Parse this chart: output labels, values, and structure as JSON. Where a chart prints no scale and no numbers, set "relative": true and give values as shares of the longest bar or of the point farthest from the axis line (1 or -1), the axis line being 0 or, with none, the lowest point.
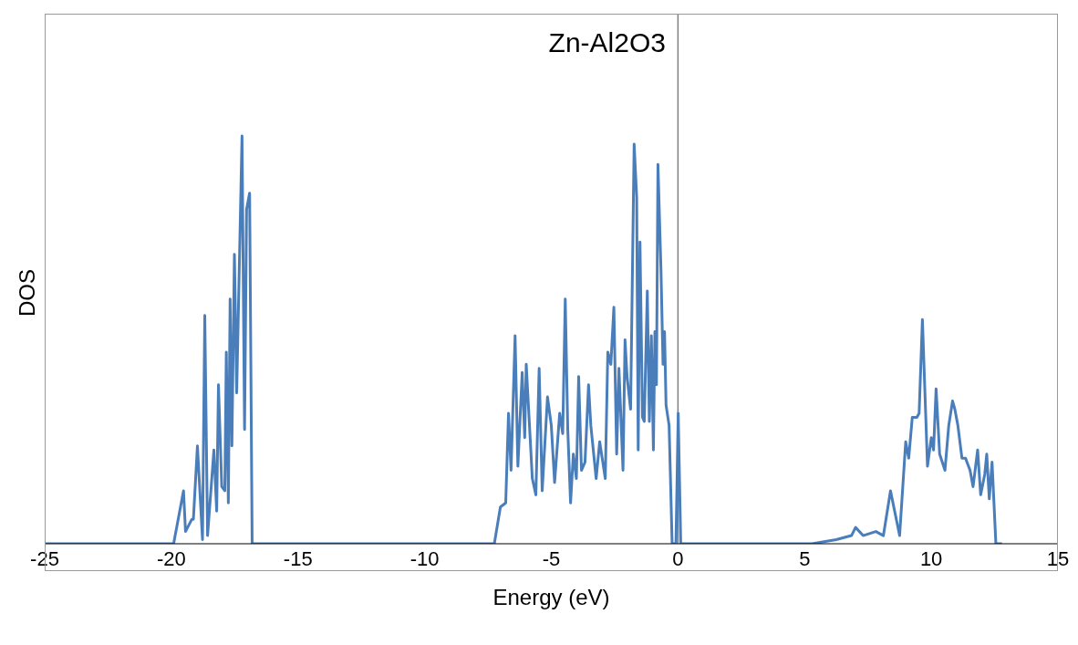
{
  "chart_data": {
    "type": "line",
    "title": "Zn-Al2O3",
    "xlabel": "Energy (eV)",
    "ylabel": "DOS",
    "relative": true,
    "xlim": [
      -25,
      15
    ],
    "xticks": [
      -25,
      -20,
      -15,
      -10,
      -5,
      0,
      5,
      10,
      15
    ],
    "grid": false,
    "legend": false,
    "marker": "none",
    "line_style": "solid",
    "ref_lines": [
      {
        "axis": "x",
        "value": 0,
        "color": "#808080"
      }
    ],
    "series": [
      {
        "color": "#4a7ebb",
        "x": [
          -25,
          -20.0,
          -19.91,
          -19.52,
          -19.44,
          -19.19,
          -19.13,
          -18.97,
          -18.77,
          -18.68,
          -18.57,
          -18.32,
          -18.21,
          -18.14,
          -18.01,
          -17.89,
          -17.83,
          -17.75,
          -17.68,
          -17.61,
          -17.51,
          -17.42,
          -17.21,
          -17.11,
          -17.03,
          -16.91,
          -16.81,
          -7.25,
          -7.01,
          -6.8,
          -6.69,
          -6.59,
          -6.43,
          -6.32,
          -6.15,
          -6.05,
          -5.99,
          -5.75,
          -5.61,
          -5.48,
          -5.36,
          -5.15,
          -5.0,
          -4.87,
          -4.67,
          -4.55,
          -4.45,
          -4.35,
          -4.24,
          -4.13,
          -4.01,
          -3.92,
          -3.81,
          -3.67,
          -3.53,
          -3.44,
          -3.23,
          -3.09,
          -2.87,
          -2.77,
          -2.65,
          -2.53,
          -2.42,
          -2.33,
          -2.17,
          -2.09,
          -2.01,
          -1.87,
          -1.73,
          -1.63,
          -1.57,
          -1.5,
          -1.4,
          -1.33,
          -1.21,
          -1.13,
          -1.05,
          -0.97,
          -0.91,
          -0.85,
          -0.79,
          -0.67,
          -0.59,
          -0.53,
          -0.47,
          -0.35,
          -0.23,
          -0.08,
          0.01,
          0.11,
          5.29,
          6.25,
          6.85,
          7.01,
          7.31,
          7.81,
          8.11,
          8.39,
          8.75,
          8.99,
          9.11,
          9.25,
          9.43,
          9.52,
          9.65,
          9.85,
          10.0,
          10.09,
          10.19,
          10.33,
          10.54,
          10.69,
          10.84,
          10.93,
          11.05,
          11.21,
          11.35,
          11.53,
          11.65,
          11.83,
          11.95,
          12.11,
          12.19,
          12.29,
          12.4,
          12.55,
          12.79
        ],
        "values": [
          0,
          0,
          0,
          0.13,
          0.03,
          0.06,
          0.06,
          0.24,
          0.01,
          0.56,
          0.02,
          0.23,
          0.08,
          0.39,
          0.14,
          0.13,
          0.47,
          0.1,
          0.6,
          0.24,
          0.71,
          0.37,
          1.0,
          0.28,
          0.82,
          0.86,
          0,
          0,
          0.09,
          0.1,
          0.32,
          0.18,
          0.51,
          0.19,
          0.42,
          0.26,
          0.44,
          0.16,
          0.12,
          0.43,
          0.13,
          0.36,
          0.29,
          0.15,
          0.32,
          0.27,
          0.6,
          0.28,
          0.1,
          0.22,
          0.16,
          0.41,
          0.18,
          0.2,
          0.39,
          0.29,
          0.16,
          0.25,
          0.16,
          0.47,
          0.44,
          0.58,
          0.22,
          0.43,
          0.18,
          0.5,
          0.41,
          0.33,
          0.98,
          0.85,
          0.23,
          0.74,
          0.31,
          0.3,
          0.62,
          0.3,
          0.51,
          0.23,
          0.52,
          0.39,
          0.93,
          0.67,
          0.44,
          0.52,
          0.34,
          0.29,
          0,
          0,
          0.32,
          0,
          0,
          0.01,
          0.02,
          0.04,
          0.02,
          0.03,
          0.02,
          0.13,
          0.02,
          0.25,
          0.21,
          0.31,
          0.31,
          0.32,
          0.55,
          0.19,
          0.26,
          0.23,
          0.38,
          0.22,
          0.18,
          0.29,
          0.35,
          0.33,
          0.29,
          0.21,
          0.21,
          0.18,
          0.14,
          0.23,
          0.12,
          0.17,
          0.22,
          0.11,
          0.2,
          0,
          0
        ]
      }
    ]
  }
}
